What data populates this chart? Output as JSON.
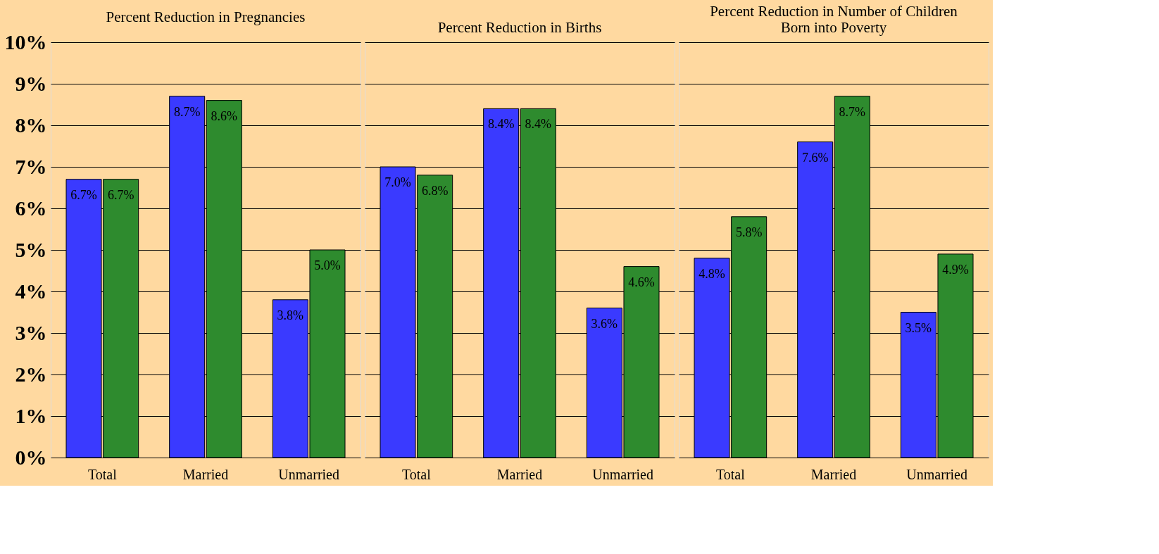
{
  "chart_data": [
    {
      "type": "bar",
      "title": "Percent Reduction in Pregnancies",
      "categories": [
        "Total",
        "Married",
        "Unmarried"
      ],
      "series": [
        {
          "color": "#3a3aff",
          "values": [
            6.7,
            8.7,
            3.8
          ],
          "value_labels": [
            "6.7%",
            "8.7%",
            "3.8%"
          ]
        },
        {
          "color": "#2e8b2e",
          "values": [
            6.7,
            8.6,
            5.0
          ],
          "value_labels": [
            "6.7%",
            "8.6%",
            "5.0%"
          ]
        }
      ],
      "ylim": [
        0,
        10
      ],
      "yticks": [
        {
          "value": 0,
          "label": "0%"
        },
        {
          "value": 1,
          "label": "1%"
        },
        {
          "value": 2,
          "label": "2%"
        },
        {
          "value": 3,
          "label": "3%"
        },
        {
          "value": 4,
          "label": "4%"
        },
        {
          "value": 5,
          "label": "5%"
        },
        {
          "value": 6,
          "label": "6%"
        },
        {
          "value": 7,
          "label": "7%"
        },
        {
          "value": 8,
          "label": "8%"
        },
        {
          "value": 9,
          "label": "9%"
        },
        {
          "value": 10,
          "label": "10%"
        }
      ],
      "grid": "y",
      "legend": false
    },
    {
      "type": "bar",
      "title": "Percent Reduction in Births",
      "categories": [
        "Total",
        "Married",
        "Unmarried"
      ],
      "series": [
        {
          "color": "#3a3aff",
          "values": [
            7.0,
            8.4,
            3.6
          ],
          "value_labels": [
            "7.0%",
            "8.4%",
            "3.6%"
          ]
        },
        {
          "color": "#2e8b2e",
          "values": [
            6.8,
            8.4,
            4.6
          ],
          "value_labels": [
            "6.8%",
            "8.4%",
            "4.6%"
          ]
        }
      ],
      "ylim": [
        0,
        10
      ],
      "yticks": [
        {
          "value": 0,
          "label": null
        },
        {
          "value": 1,
          "label": null
        },
        {
          "value": 2,
          "label": null
        },
        {
          "value": 3,
          "label": null
        },
        {
          "value": 4,
          "label": null
        },
        {
          "value": 5,
          "label": null
        },
        {
          "value": 6,
          "label": null
        },
        {
          "value": 7,
          "label": null
        },
        {
          "value": 8,
          "label": null
        },
        {
          "value": 9,
          "label": null
        },
        {
          "value": 10,
          "label": null
        }
      ],
      "grid": "y",
      "legend": false,
      "tick_labels": "x"
    },
    {
      "type": "bar",
      "title": "Percent Reduction in Number of Children Born into Poverty",
      "categories": [
        "Total",
        "Married",
        "Unmarried"
      ],
      "series": [
        {
          "color": "#3a3aff",
          "values": [
            4.8,
            7.6,
            3.5
          ],
          "value_labels": [
            "4.8%",
            "7.6%",
            "3.5%"
          ]
        },
        {
          "color": "#2e8b2e",
          "values": [
            5.8,
            8.7,
            4.9
          ],
          "value_labels": [
            "5.8%",
            "8.7%",
            "4.9%"
          ]
        }
      ],
      "ylim": [
        0,
        10
      ],
      "yticks": [
        {
          "value": 0,
          "label": null
        },
        {
          "value": 1,
          "label": null
        },
        {
          "value": 2,
          "label": null
        },
        {
          "value": 3,
          "label": null
        },
        {
          "value": 4,
          "label": null
        },
        {
          "value": 5,
          "label": null
        },
        {
          "value": 6,
          "label": null
        },
        {
          "value": 7,
          "label": null
        },
        {
          "value": 8,
          "label": null
        },
        {
          "value": 9,
          "label": null
        },
        {
          "value": 10,
          "label": null
        }
      ],
      "grid": "y",
      "legend": false,
      "tick_labels": "x"
    }
  ]
}
